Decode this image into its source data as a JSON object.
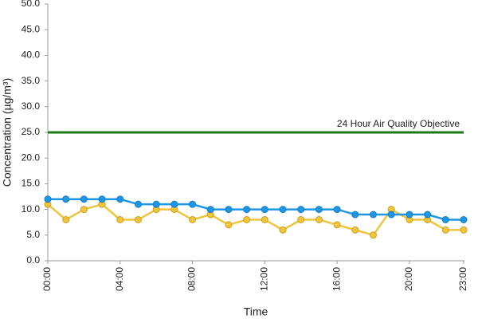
{
  "chart_data": {
    "type": "line",
    "x_label": "Time",
    "y_label": "Concentration (µg/m³)",
    "categories": [
      "00:00",
      null,
      null,
      null,
      "04:00",
      null,
      null,
      null,
      "08:00",
      null,
      null,
      null,
      "12:00",
      null,
      null,
      null,
      "16:00",
      null,
      null,
      null,
      "20:00",
      null,
      null,
      "23:00"
    ],
    "series": [
      {
        "color": "#1e96e6",
        "values": [
          12,
          12,
          12,
          12,
          12,
          11,
          11,
          11,
          11,
          10,
          10,
          10,
          10,
          10,
          10,
          10,
          10,
          9,
          9,
          9,
          9,
          9,
          8,
          8
        ]
      },
      {
        "color": "#f0c43c",
        "values": [
          11,
          8,
          10,
          11,
          8,
          8,
          10,
          10,
          8,
          9,
          7,
          8,
          8,
          6,
          8,
          8,
          7,
          6,
          5,
          10,
          8,
          8,
          6,
          6
        ]
      }
    ],
    "reference_line": {
      "label": "24 Hour Air Quality Objective",
      "value": 25,
      "color": "#1a7a1a"
    },
    "ylim": [
      0,
      50
    ],
    "yticks": [
      {
        "value": 0,
        "label": "0.0"
      },
      {
        "value": 5,
        "label": "5.0"
      },
      {
        "value": 10,
        "label": "10.0"
      },
      {
        "value": 15,
        "label": "15.0"
      },
      {
        "value": 20,
        "label": "20.0"
      },
      {
        "value": 25,
        "label": "25.0"
      },
      {
        "value": 30,
        "label": "30.0"
      },
      {
        "value": 35,
        "label": "35.0"
      },
      {
        "value": 40,
        "label": "40.0"
      },
      {
        "value": 45,
        "label": "45.0"
      },
      {
        "value": 50,
        "label": "50.0"
      }
    ],
    "grid": false
  }
}
